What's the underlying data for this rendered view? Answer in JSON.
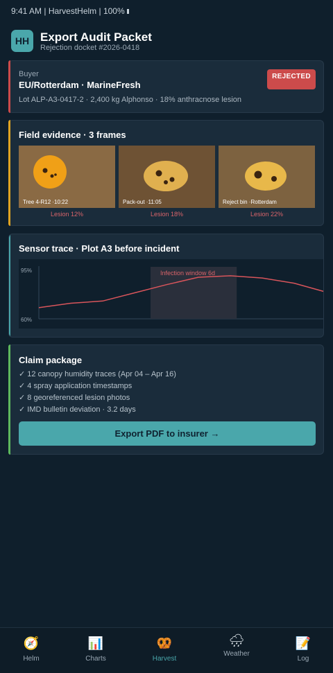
{
  "status_bar": {
    "text": "9:41 AM | HarvestHelm | 100%"
  },
  "header": {
    "logo_text": "HH",
    "title": "Export Audit Packet",
    "subtitle": "Rejection docket #2026-0418"
  },
  "buyer_card": {
    "label": "Buyer",
    "name": "EU/Rotterdam · MarineFresh",
    "lot": "Lot ALP-A3-0417-2 · 2,400 kg Alphonso · 18% anthracnose lesion",
    "badge": "REJECTED",
    "accent_color": "#cc4b4b"
  },
  "evidence_card": {
    "title": "Field evidence · 3 frames",
    "accent_color": "#e0a422",
    "frames": [
      {
        "caption": "Tree 4-R12 ·10:22",
        "lesion": "Lesion 12%"
      },
      {
        "caption": "Pack-out ·11:05",
        "lesion": "Lesion 18%"
      },
      {
        "caption": "Reject bin ·Rotterdam",
        "lesion": "Lesion 22%"
      }
    ]
  },
  "sensor_card": {
    "title": "Sensor trace · Plot A3 before incident",
    "accent_color": "#4aa7ab"
  },
  "chart_data": {
    "type": "line",
    "title": "Sensor trace · Plot A3 before incident",
    "ylim": [
      60,
      95
    ],
    "ytick_labels": [
      "95%",
      "60%"
    ],
    "series": [
      {
        "values": [
          67.5,
          70.5,
          72,
          77.5,
          83,
          88,
          89,
          87.5,
          84,
          78
        ]
      }
    ],
    "shaded_region": {
      "label": "Infection window 6d",
      "start_index": 3.5,
      "end_index": 6.2
    },
    "grid": false,
    "line_color": "#d9555b"
  },
  "claim_card": {
    "title": "Claim package",
    "accent_color": "#5db85d",
    "items": [
      "✓ 12 canopy humidity traces (Apr 04 – Apr 16)",
      "✓ 4 spray application timestamps",
      "✓ 8 georeferenced lesion photos",
      "✓ IMD bulletin deviation · 3.2 days"
    ],
    "button": "Export PDF to insurer →"
  },
  "nav": {
    "items": [
      {
        "label": "Helm",
        "icon": "compass-icon",
        "glyph": "🧭"
      },
      {
        "label": "Charts",
        "icon": "bar-chart-icon",
        "glyph": "📊"
      },
      {
        "label": "Harvest",
        "icon": "pretzel-icon",
        "glyph": "🥨"
      },
      {
        "label": "Weather",
        "icon": "rain-cloud-icon",
        "glyph": "🌧"
      },
      {
        "label": "Log",
        "icon": "memo-icon",
        "glyph": "📝"
      }
    ],
    "active": "Harvest"
  }
}
